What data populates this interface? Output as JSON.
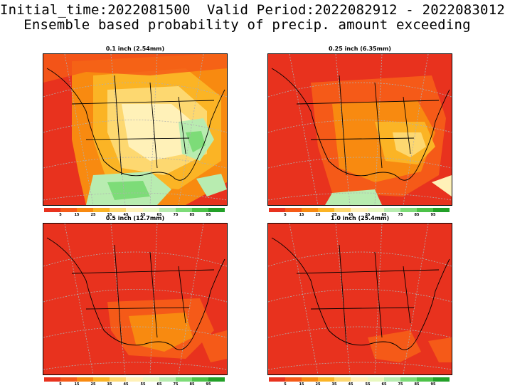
{
  "header": {
    "line1": "Initial_time:2022081500  Valid Period:2022082912 - 2022083012",
    "line2": "Ensemble based probability of precip. amount exceeding"
  },
  "colorbar": {
    "colors": [
      "#e8321e",
      "#f55a18",
      "#f88a10",
      "#fbb425",
      "#fdd870",
      "#fff1b8",
      "#e8f8c0",
      "#b8ecb0",
      "#7ddc78",
      "#4cc248",
      "#22a028"
    ],
    "labels": [
      "5",
      "15",
      "25",
      "35",
      "45",
      "55",
      "65",
      "75",
      "85",
      "95"
    ]
  },
  "panels": [
    {
      "title": "0.1 inch (2.54mm)",
      "dominant": "mixed"
    },
    {
      "title": "0.25 inch (6.35mm)",
      "dominant": "orange"
    },
    {
      "title": "0.5 inch (12.7mm)",
      "dominant": "red"
    },
    {
      "title": "1.0 inch (25.4mm)",
      "dominant": "red"
    }
  ]
}
